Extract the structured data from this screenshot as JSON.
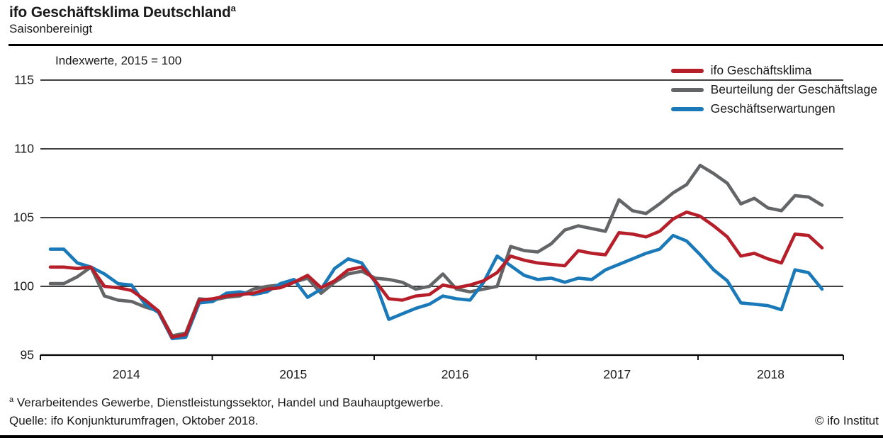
{
  "header": {
    "title": "ifo Geschäftsklima Deutschland",
    "title_superscript": "a",
    "subtitle": "Saisonbereinigt"
  },
  "chart_data": {
    "type": "line",
    "annotation": "Indexwerte, 2015 = 100",
    "grid": "horizontal",
    "legend_position": "top-right",
    "y_ticks": [
      95,
      100,
      105,
      110,
      115
    ],
    "ylim": [
      95,
      116
    ],
    "x_tick_labels": [
      "2014",
      "2015",
      "2016",
      "2017",
      "2018"
    ],
    "x": [
      "2014-01",
      "2014-02",
      "2014-03",
      "2014-04",
      "2014-05",
      "2014-06",
      "2014-07",
      "2014-08",
      "2014-09",
      "2014-10",
      "2014-11",
      "2014-12",
      "2015-01",
      "2015-02",
      "2015-03",
      "2015-04",
      "2015-05",
      "2015-06",
      "2015-07",
      "2015-08",
      "2015-09",
      "2015-10",
      "2015-11",
      "2015-12",
      "2016-01",
      "2016-02",
      "2016-03",
      "2016-04",
      "2016-05",
      "2016-06",
      "2016-07",
      "2016-08",
      "2016-09",
      "2016-10",
      "2016-11",
      "2016-12",
      "2017-01",
      "2017-02",
      "2017-03",
      "2017-04",
      "2017-05",
      "2017-06",
      "2017-07",
      "2017-08",
      "2017-09",
      "2017-10",
      "2017-11",
      "2017-12",
      "2018-01",
      "2018-02",
      "2018-03",
      "2018-04",
      "2018-05",
      "2018-06",
      "2018-07",
      "2018-08",
      "2018-09",
      "2018-10"
    ],
    "series": [
      {
        "name": "Beurteilung der Geschäftslage",
        "color": "#646567",
        "values": [
          100.2,
          100.2,
          100.7,
          101.4,
          99.3,
          99.0,
          98.9,
          98.5,
          98.2,
          96.4,
          96.6,
          99.1,
          99.0,
          99.2,
          99.3,
          99.8,
          100.0,
          100.1,
          100.3,
          100.6,
          99.5,
          100.3,
          100.9,
          101.1,
          100.6,
          100.5,
          100.3,
          99.8,
          100.0,
          100.9,
          99.8,
          99.6,
          99.8,
          100.0,
          102.9,
          102.6,
          102.5,
          103.1,
          104.1,
          104.4,
          104.2,
          104.0,
          106.3,
          105.5,
          105.3,
          106.0,
          106.8,
          107.4,
          108.8,
          108.2,
          107.5,
          106.0,
          106.4,
          105.7,
          105.5,
          106.6,
          106.5,
          105.9
        ]
      },
      {
        "name": "Geschäftserwartungen",
        "color": "#1a79b8",
        "values": [
          102.7,
          102.7,
          101.7,
          101.4,
          100.9,
          100.2,
          100.1,
          98.7,
          98.1,
          96.2,
          96.3,
          98.8,
          98.9,
          99.5,
          99.6,
          99.4,
          99.6,
          100.2,
          100.5,
          99.2,
          99.8,
          101.3,
          102.0,
          101.7,
          100.3,
          97.6,
          98.0,
          98.4,
          98.7,
          99.3,
          99.1,
          99.0,
          100.3,
          102.2,
          101.5,
          100.8,
          100.5,
          100.6,
          100.3,
          100.6,
          100.5,
          101.2,
          101.6,
          102.0,
          102.4,
          102.7,
          103.7,
          103.3,
          102.3,
          101.2,
          100.4,
          98.8,
          98.7,
          98.6,
          98.3,
          101.2,
          101.0,
          99.8
        ]
      },
      {
        "name": "ifo Geschäftsklima",
        "color": "#b61f29",
        "values": [
          101.4,
          101.4,
          101.3,
          101.4,
          100.0,
          99.9,
          99.7,
          99.0,
          98.2,
          96.3,
          96.5,
          99.0,
          99.1,
          99.3,
          99.4,
          99.5,
          99.8,
          99.9,
          100.3,
          100.8,
          99.9,
          100.4,
          101.2,
          101.4,
          100.4,
          99.1,
          99.0,
          99.3,
          99.4,
          100.1,
          99.9,
          100.1,
          100.4,
          101.0,
          102.2,
          101.9,
          101.7,
          101.6,
          101.5,
          102.6,
          102.4,
          102.3,
          103.9,
          103.8,
          103.6,
          104.0,
          104.9,
          105.4,
          105.1,
          104.4,
          103.6,
          102.2,
          102.4,
          102.0,
          101.7,
          103.8,
          103.7,
          102.8
        ]
      }
    ],
    "legend_order": [
      "ifo Geschäftsklima",
      "Beurteilung der Geschäftslage",
      "Geschäftserwartungen"
    ]
  },
  "footer": {
    "footnote_marker": "a",
    "footnote": "Verarbeitendes Gewerbe, Dienstleistungssektor, Handel und Bauhauptgewerbe.",
    "source": "Quelle: ifo Konjunkturumfragen, Oktober 2018.",
    "copyright": "© ifo Institut"
  }
}
